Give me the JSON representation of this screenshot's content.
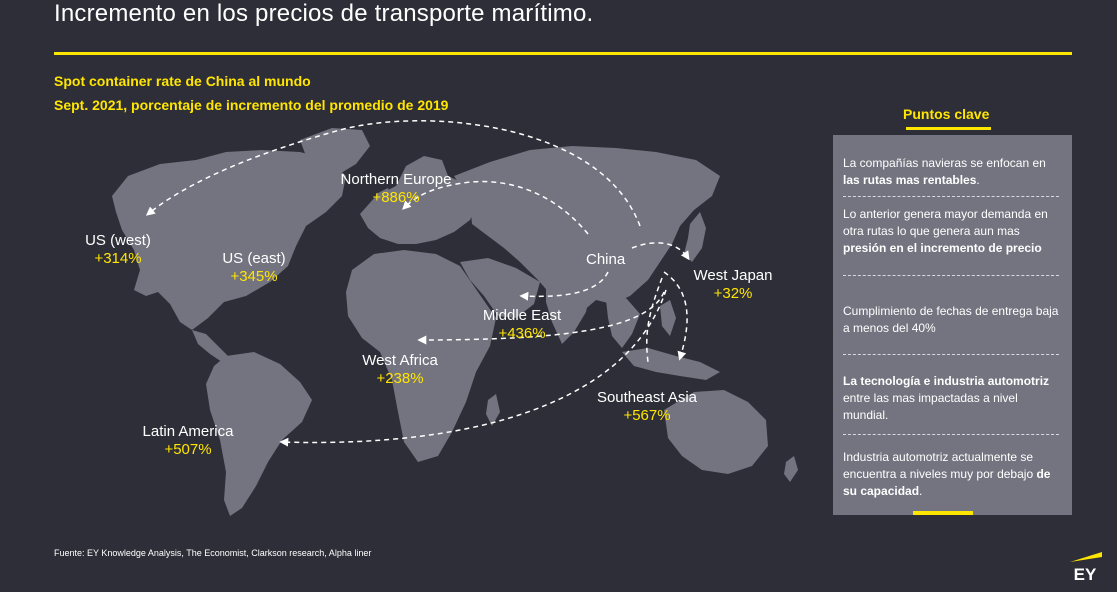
{
  "header": {
    "title": "Incremento en los precios de transporte marítimo.",
    "subtitle_1": "Spot container rate de China al mundo",
    "subtitle_2": "Sept. 2021, porcentaje de incremento del promedio  de 2019"
  },
  "map": {
    "origin": "China",
    "routes": [
      {
        "name": "US (west)",
        "pct": "+314%"
      },
      {
        "name": "US (east)",
        "pct": "+345%"
      },
      {
        "name": "Northern Europe",
        "pct": "+886%"
      },
      {
        "name": "West Japan",
        "pct": "+32%"
      },
      {
        "name": "Middle East",
        "pct": "+436%"
      },
      {
        "name": "West Africa",
        "pct": "+238%"
      },
      {
        "name": "Southeast Asia",
        "pct": "+567%"
      },
      {
        "name": "Latin America",
        "pct": "+507%"
      }
    ]
  },
  "key_points": {
    "title": "Puntos clave",
    "items": [
      {
        "text_a": "La compañías navieras se enfocan en ",
        "bold": "las rutas mas rentables",
        "text_b": "."
      },
      {
        "text_a": "Lo anterior genera mayor demanda en otra rutas lo que genera aun mas ",
        "bold": "presión en el incremento de precio",
        "text_b": ""
      },
      {
        "text_a": "Cumplimiento de fechas de entrega baja a menos del 40%",
        "bold": "",
        "text_b": ""
      },
      {
        "text_a": "",
        "bold": "La tecnología e industria automotriz",
        "text_b": " entre las mas impactadas a nivel mundial."
      },
      {
        "text_a": "Industria automotriz actualmente se encuentra a niveles muy por debajo ",
        "bold": "de su capacidad",
        "text_b": "."
      }
    ]
  },
  "footer": {
    "source": "Fuente: EY Knowledge Analysis, The Economist, Clarkson research, Alpha liner",
    "logo_text": "EY"
  },
  "colors": {
    "background": "#2e2e38",
    "accent": "#ffe600",
    "land": "#747480",
    "panel": "#747480"
  }
}
